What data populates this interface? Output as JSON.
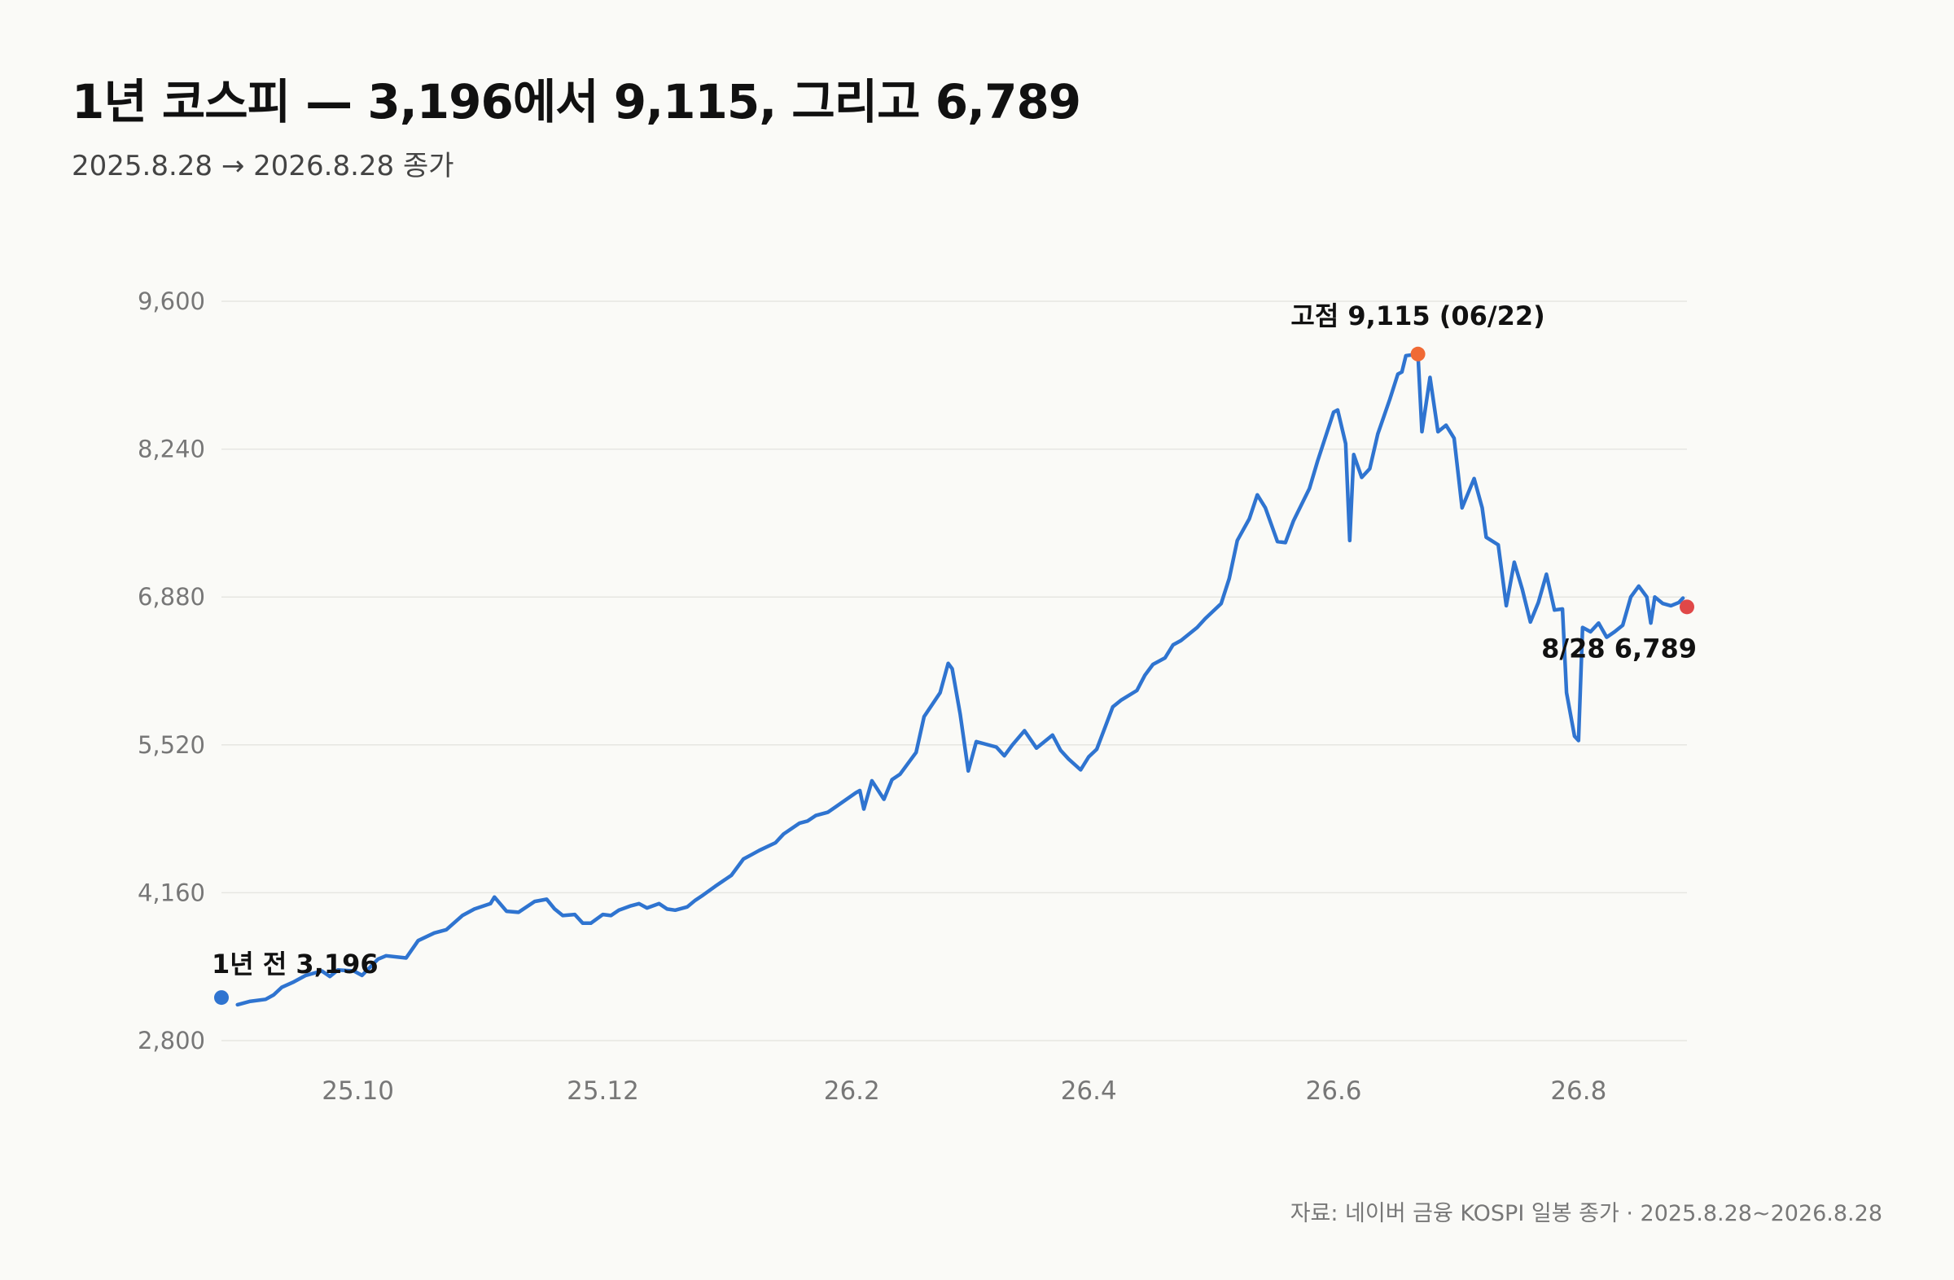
{
  "header": {
    "title": "1년 코스피 — 3,196에서 9,115, 그리고 6,789",
    "subtitle": "2025.8.28 → 2026.8.28 종가"
  },
  "footer": {
    "source": "자료: 네이버 금융 KOSPI 일봉 종가 · 2025.8.28~2026.8.28"
  },
  "colors": {
    "line": "#2f74d0",
    "start_marker": "#2f74d0",
    "peak_marker": "#f06a35",
    "end_marker": "#e04848",
    "grid": "#e6e6e2"
  },
  "chart_data": {
    "type": "line",
    "title": "1년 코스피 — 3,196에서 9,115, 그리고 6,789",
    "xlabel": "",
    "ylabel": "",
    "ylim": [
      2800,
      9600
    ],
    "yticks": [
      2800,
      4160,
      5520,
      6880,
      8240,
      9600
    ],
    "ytick_labels": [
      "2,800",
      "4,160",
      "5,520",
      "6,880",
      "8,240",
      "9,600"
    ],
    "xlim": [
      "2025-08-28",
      "2026-08-28"
    ],
    "xticks": [
      "2025-10-01",
      "2025-12-01",
      "2026-02-01",
      "2026-04-01",
      "2026-06-01",
      "2026-08-01"
    ],
    "xtick_labels": [
      "25.10",
      "25.12",
      "26.2",
      "26.4",
      "26.6",
      "26.8"
    ],
    "grid": true,
    "series": [
      {
        "values": [
          [
            "2025-09-01",
            3130
          ],
          [
            "2025-09-04",
            3160
          ],
          [
            "2025-09-08",
            3180
          ],
          [
            "2025-09-10",
            3220
          ],
          [
            "2025-09-12",
            3290
          ],
          [
            "2025-09-15",
            3340
          ],
          [
            "2025-09-18",
            3400
          ],
          [
            "2025-09-22",
            3440
          ],
          [
            "2025-09-24",
            3390
          ],
          [
            "2025-09-26",
            3450
          ],
          [
            "2025-09-30",
            3440
          ],
          [
            "2025-10-02",
            3400
          ],
          [
            "2025-10-06",
            3550
          ],
          [
            "2025-10-08",
            3580
          ],
          [
            "2025-10-13",
            3560
          ],
          [
            "2025-10-16",
            3720
          ],
          [
            "2025-10-20",
            3790
          ],
          [
            "2025-10-23",
            3820
          ],
          [
            "2025-10-27",
            3950
          ],
          [
            "2025-10-30",
            4010
          ],
          [
            "2025-11-03",
            4060
          ],
          [
            "2025-11-04",
            4120
          ],
          [
            "2025-11-07",
            3990
          ],
          [
            "2025-11-10",
            3980
          ],
          [
            "2025-11-12",
            4030
          ],
          [
            "2025-11-14",
            4080
          ],
          [
            "2025-11-17",
            4100
          ],
          [
            "2025-11-19",
            4010
          ],
          [
            "2025-11-21",
            3950
          ],
          [
            "2025-11-24",
            3960
          ],
          [
            "2025-11-26",
            3880
          ],
          [
            "2025-11-28",
            3880
          ],
          [
            "2025-12-01",
            3960
          ],
          [
            "2025-12-03",
            3950
          ],
          [
            "2025-12-05",
            4000
          ],
          [
            "2025-12-08",
            4040
          ],
          [
            "2025-12-10",
            4060
          ],
          [
            "2025-12-12",
            4020
          ],
          [
            "2025-12-15",
            4060
          ],
          [
            "2025-12-17",
            4010
          ],
          [
            "2025-12-19",
            4000
          ],
          [
            "2025-12-22",
            4030
          ],
          [
            "2025-12-24",
            4090
          ],
          [
            "2025-12-26",
            4140
          ],
          [
            "2025-12-29",
            4220
          ],
          [
            "2026-01-02",
            4320
          ],
          [
            "2026-01-05",
            4470
          ],
          [
            "2026-01-07",
            4510
          ],
          [
            "2026-01-09",
            4550
          ],
          [
            "2026-01-13",
            4620
          ],
          [
            "2026-01-15",
            4700
          ],
          [
            "2026-01-19",
            4800
          ],
          [
            "2026-01-21",
            4820
          ],
          [
            "2026-01-23",
            4870
          ],
          [
            "2026-01-26",
            4900
          ],
          [
            "2026-01-28",
            4950
          ],
          [
            "2026-02-02",
            5080
          ],
          [
            "2026-02-03",
            5100
          ],
          [
            "2026-02-04",
            4930
          ],
          [
            "2026-02-06",
            5190
          ],
          [
            "2026-02-09",
            5020
          ],
          [
            "2026-02-11",
            5200
          ],
          [
            "2026-02-13",
            5250
          ],
          [
            "2026-02-17",
            5450
          ],
          [
            "2026-02-19",
            5780
          ],
          [
            "2026-02-23",
            6000
          ],
          [
            "2026-02-25",
            6270
          ],
          [
            "2026-02-26",
            6220
          ],
          [
            "2026-02-28",
            5800
          ],
          [
            "2026-03-02",
            5280
          ],
          [
            "2026-03-04",
            5550
          ],
          [
            "2026-03-06",
            5530
          ],
          [
            "2026-03-09",
            5500
          ],
          [
            "2026-03-11",
            5420
          ],
          [
            "2026-03-13",
            5520
          ],
          [
            "2026-03-16",
            5650
          ],
          [
            "2026-03-19",
            5490
          ],
          [
            "2026-03-23",
            5610
          ],
          [
            "2026-03-25",
            5470
          ],
          [
            "2026-03-27",
            5390
          ],
          [
            "2026-03-30",
            5290
          ],
          [
            "2026-04-01",
            5410
          ],
          [
            "2026-04-03",
            5480
          ],
          [
            "2026-04-07",
            5870
          ],
          [
            "2026-04-09",
            5930
          ],
          [
            "2026-04-13",
            6020
          ],
          [
            "2026-04-15",
            6160
          ],
          [
            "2026-04-17",
            6260
          ],
          [
            "2026-04-20",
            6320
          ],
          [
            "2026-04-22",
            6440
          ],
          [
            "2026-04-24",
            6480
          ],
          [
            "2026-04-28",
            6600
          ],
          [
            "2026-04-30",
            6680
          ],
          [
            "2026-05-04",
            6820
          ],
          [
            "2026-05-06",
            7050
          ],
          [
            "2026-05-08",
            7400
          ],
          [
            "2026-05-11",
            7600
          ],
          [
            "2026-05-13",
            7820
          ],
          [
            "2026-05-15",
            7700
          ],
          [
            "2026-05-18",
            7390
          ],
          [
            "2026-05-20",
            7380
          ],
          [
            "2026-05-22",
            7580
          ],
          [
            "2026-05-26",
            7880
          ],
          [
            "2026-05-28",
            8130
          ],
          [
            "2026-06-01",
            8580
          ],
          [
            "2026-06-02",
            8600
          ],
          [
            "2026-06-04",
            8290
          ],
          [
            "2026-06-05",
            7400
          ],
          [
            "2026-06-06",
            8190
          ],
          [
            "2026-06-08",
            7980
          ],
          [
            "2026-06-10",
            8060
          ],
          [
            "2026-06-12",
            8380
          ],
          [
            "2026-06-15",
            8700
          ],
          [
            "2026-06-17",
            8930
          ],
          [
            "2026-06-18",
            8950
          ],
          [
            "2026-06-19",
            9100
          ],
          [
            "2026-06-22",
            9115
          ],
          [
            "2026-06-23",
            8400
          ],
          [
            "2026-06-25",
            8900
          ],
          [
            "2026-06-27",
            8400
          ],
          [
            "2026-06-29",
            8460
          ],
          [
            "2026-07-01",
            8340
          ],
          [
            "2026-07-03",
            7700
          ],
          [
            "2026-07-06",
            7970
          ],
          [
            "2026-07-08",
            7700
          ],
          [
            "2026-07-09",
            7430
          ],
          [
            "2026-07-12",
            7360
          ],
          [
            "2026-07-14",
            6800
          ],
          [
            "2026-07-16",
            7200
          ],
          [
            "2026-07-18",
            6950
          ],
          [
            "2026-07-20",
            6650
          ],
          [
            "2026-07-22",
            6830
          ],
          [
            "2026-07-24",
            7090
          ],
          [
            "2026-07-26",
            6760
          ],
          [
            "2026-07-28",
            6770
          ],
          [
            "2026-07-29",
            6000
          ],
          [
            "2026-07-31",
            5600
          ],
          [
            "2026-08-01",
            5560
          ],
          [
            "2026-08-02",
            6600
          ],
          [
            "2026-08-04",
            6560
          ],
          [
            "2026-08-06",
            6640
          ],
          [
            "2026-08-08",
            6510
          ],
          [
            "2026-08-10",
            6560
          ],
          [
            "2026-08-12",
            6620
          ],
          [
            "2026-08-14",
            6880
          ],
          [
            "2026-08-16",
            6980
          ],
          [
            "2026-08-18",
            6880
          ],
          [
            "2026-08-19",
            6640
          ],
          [
            "2026-08-20",
            6880
          ],
          [
            "2026-08-22",
            6820
          ],
          [
            "2026-08-24",
            6800
          ],
          [
            "2026-08-26",
            6830
          ],
          [
            "2026-08-27",
            6870
          ]
        ]
      }
    ],
    "markers": [
      {
        "date": "2025-08-28",
        "value": 3196,
        "label": "1년 전 3,196",
        "color": "#2f74d0"
      },
      {
        "date": "2026-06-22",
        "value": 9115,
        "label": "고점 9,115 (06/22)",
        "color": "#f06a35"
      },
      {
        "date": "2026-08-28",
        "value": 6789,
        "label": "8/28 6,789",
        "color": "#e04848"
      }
    ]
  }
}
